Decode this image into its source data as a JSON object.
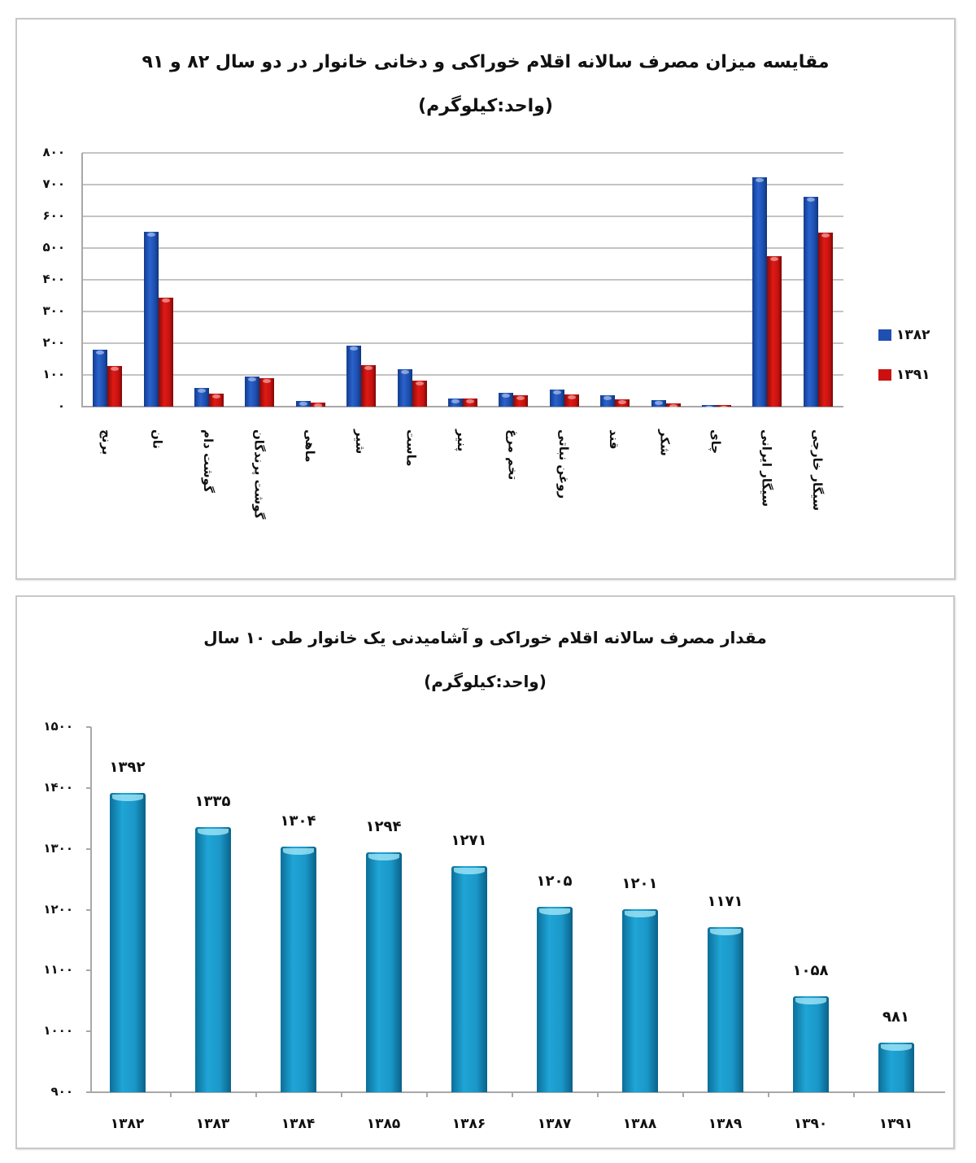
{
  "chart1": {
    "title": "مقایسه میزان مصرف سالانه اقلام خوراکی و دخانی خانوار در دو سال ۸۲ و ۹۱",
    "subtitle": "(واحد:کیلوگرم)",
    "yticks": [
      "۸۰۰",
      "۷۰۰",
      "۶۰۰",
      "۵۰۰",
      "۴۰۰",
      "۳۰۰",
      "۲۰۰",
      "۱۰۰",
      "۰"
    ],
    "legend": [
      {
        "label": "۱۳۸۲",
        "color": "#1f4fb0"
      },
      {
        "label": "۱۳۹۱",
        "color": "#cc1010"
      }
    ]
  },
  "chart2": {
    "title": "مقدار مصرف سالانه اقلام خوراکی و آشامیدنی یک خانوار طی ۱۰ سال",
    "subtitle": "(واحد:کیلوگرم)",
    "yticks": [
      "۱۵۰۰",
      "۱۴۰۰",
      "۱۳۰۰",
      "۱۲۰۰",
      "۱۱۰۰",
      "۱۰۰۰",
      "۹۰۰"
    ],
    "value_labels": [
      "۱۳۹۲",
      "۱۳۳۵",
      "۱۳۰۴",
      "۱۲۹۴",
      "۱۲۷۱",
      "۱۲۰۵",
      "۱۲۰۱",
      "۱۱۷۱",
      "۱۰۵۸",
      "۹۸۱"
    ],
    "categories": [
      "۱۳۸۲",
      "۱۳۸۳",
      "۱۳۸۴",
      "۱۳۸۵",
      "۱۳۸۶",
      "۱۳۸۷",
      "۱۳۸۸",
      "۱۳۸۹",
      "۱۳۹۰",
      "۱۳۹۱"
    ],
    "bar_color": "#1ea0d0"
  },
  "chart_data": [
    {
      "type": "bar",
      "title": "مقایسه میزان مصرف سالانه اقلام خوراکی و دخانی خانوار در دو سال ۸۲ و ۹۱",
      "subtitle": "(واحد:کیلوگرم)",
      "xlabel": "",
      "ylabel": "",
      "ylim": [
        0,
        800
      ],
      "grid": true,
      "legend_position": "right",
      "categories": [
        "برنج",
        "نان",
        "گوشت دام",
        "گوشت پرندگان",
        "ماهی",
        "شیر",
        "ماست",
        "پنیر",
        "تخم مرغ",
        "روغن نباتی",
        "قند",
        "شکر",
        "چای",
        "سیگار ایرانی",
        "سیگار خارجی"
      ],
      "series": [
        {
          "name": "۱۳۸۲",
          "values": [
            180,
            551,
            60,
            96,
            18,
            192,
            117,
            26,
            43,
            53,
            35,
            20,
            6,
            723,
            662
          ]
        },
        {
          "name": "۱۳۹۱",
          "values": [
            128,
            344,
            40,
            89,
            12,
            130,
            82,
            26,
            35,
            38,
            24,
            10,
            5,
            474,
            548
          ]
        }
      ]
    },
    {
      "type": "bar",
      "title": "مقدار مصرف سالانه اقلام خوراکی و آشامیدنی یک خانوار طی ۱۰ سال",
      "subtitle": "(واحد:کیلوگرم)",
      "xlabel": "",
      "ylabel": "",
      "ylim": [
        900,
        1500
      ],
      "grid": false,
      "categories": [
        "۱۳۸۲",
        "۱۳۸۳",
        "۱۳۸۴",
        "۱۳۸۵",
        "۱۳۸۶",
        "۱۳۸۷",
        "۱۳۸۸",
        "۱۳۸۹",
        "۱۳۹۰",
        "۱۳۹۱"
      ],
      "values": [
        1392,
        1335,
        1304,
        1294,
        1271,
        1205,
        1201,
        1171,
        1058,
        981
      ],
      "data_labels": [
        "۱۳۹۲",
        "۱۳۳۵",
        "۱۳۰۴",
        "۱۲۹۴",
        "۱۲۷۱",
        "۱۲۰۵",
        "۱۲۰۱",
        "۱۱۷۱",
        "۱۰۵۸",
        "۹۸۱"
      ]
    }
  ]
}
